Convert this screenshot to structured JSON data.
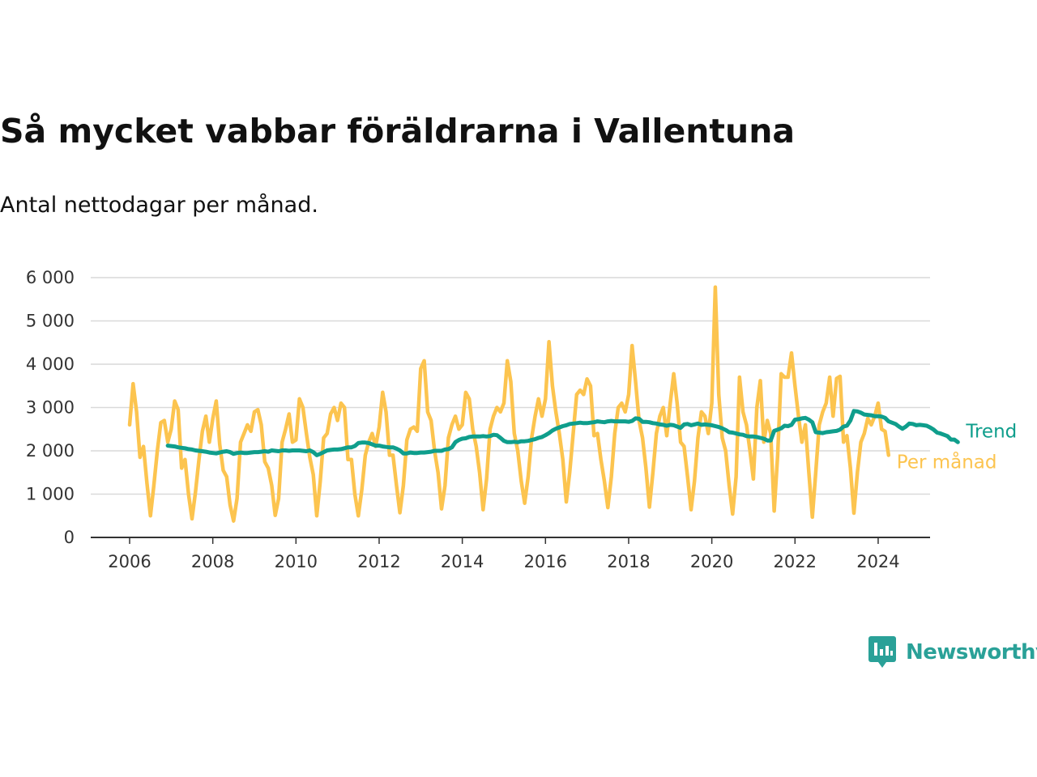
{
  "title": "Så mycket vabbar föräldrarna i Vallentuna",
  "subtitle": "Antal nettodagar per månad.",
  "brand": {
    "name": "Newsworthy",
    "icon": "chart-bubble-icon",
    "color": "#2aa198"
  },
  "chart_data": {
    "type": "line",
    "x_axis_type": "date",
    "xlim": [
      "2006-01",
      "2024-12"
    ],
    "ylim": [
      0,
      6000
    ],
    "y_ticks": [
      0,
      1000,
      2000,
      3000,
      4000,
      5000,
      6000
    ],
    "y_tick_labels": [
      "0",
      "1 000",
      "2 000",
      "3 000",
      "4 000",
      "5 000",
      "6 000"
    ],
    "x_ticks": [
      "2006",
      "2008",
      "2010",
      "2012",
      "2014",
      "2016",
      "2018",
      "2020",
      "2022",
      "2024"
    ],
    "grid": "horizontal",
    "legend": "inline-right",
    "series": [
      {
        "name": "Per månad",
        "color": "#fcc44f",
        "start": "2006-01",
        "values": [
          2600,
          3550,
          2900,
          1850,
          2100,
          1250,
          500,
          1200,
          2000,
          2650,
          2700,
          2200,
          2500,
          3150,
          2950,
          1600,
          1800,
          1000,
          430,
          1050,
          1800,
          2450,
          2800,
          2200,
          2750,
          3150,
          2150,
          1550,
          1400,
          750,
          380,
          900,
          2200,
          2400,
          2600,
          2450,
          2900,
          2950,
          2600,
          1750,
          1600,
          1200,
          510,
          900,
          2200,
          2500,
          2850,
          2200,
          2250,
          3200,
          3000,
          2400,
          1850,
          1450,
          500,
          1300,
          2300,
          2400,
          2850,
          3000,
          2700,
          3100,
          3000,
          1800,
          1800,
          1000,
          500,
          1100,
          1900,
          2200,
          2400,
          2100,
          2550,
          3350,
          2900,
          1900,
          1900,
          1200,
          570,
          1200,
          2250,
          2500,
          2550,
          2450,
          3900,
          4080,
          2900,
          2700,
          2000,
          1500,
          660,
          1200,
          2300,
          2600,
          2800,
          2500,
          2600,
          3350,
          3200,
          2500,
          2100,
          1500,
          640,
          1350,
          2500,
          2800,
          3000,
          2900,
          3100,
          4080,
          3600,
          2400,
          2000,
          1300,
          790,
          1400,
          2300,
          2800,
          3200,
          2800,
          3200,
          4520,
          3500,
          2900,
          2400,
          1800,
          820,
          1500,
          2400,
          3300,
          3400,
          3300,
          3660,
          3500,
          2350,
          2400,
          1800,
          1300,
          690,
          1400,
          2400,
          3000,
          3100,
          2900,
          3300,
          4430,
          3600,
          2700,
          2300,
          1600,
          700,
          1500,
          2400,
          2800,
          3000,
          2350,
          3100,
          3780,
          3100,
          2200,
          2100,
          1400,
          640,
          1300,
          2300,
          2900,
          2800,
          2400,
          3100,
          5780,
          3300,
          2300,
          2000,
          1200,
          540,
          1400,
          3700,
          2900,
          2600,
          2000,
          1350,
          3000,
          3620,
          2200,
          2700,
          2400,
          610,
          1900,
          3780,
          3700,
          3700,
          4260,
          3500,
          2800,
          2200,
          2600,
          1500,
          470,
          1500,
          2600,
          2900,
          3100,
          3700,
          2800,
          3670,
          3720,
          2200,
          2350,
          1600,
          560,
          1500,
          2200,
          2400,
          2750,
          2600,
          2800,
          3100,
          2500,
          2450,
          1900
        ]
      },
      {
        "name": "Trend",
        "color": "#0f9e8c",
        "start": "2006-12",
        "values": [
          2120,
          2110,
          2100,
          2080,
          2070,
          2060,
          2040,
          2030,
          2010,
          2000,
          1990,
          1980,
          1960,
          1950,
          1940,
          1960,
          1980,
          1990,
          1970,
          1930,
          1950,
          1960,
          1950,
          1950,
          1960,
          1970,
          1970,
          1980,
          1990,
          1980,
          2010,
          2000,
          1990,
          2010,
          2010,
          2000,
          2010,
          2010,
          2010,
          2000,
          1990,
          2010,
          1970,
          1900,
          1930,
          1970,
          2010,
          2020,
          2030,
          2030,
          2040,
          2060,
          2080,
          2080,
          2110,
          2180,
          2190,
          2190,
          2180,
          2150,
          2120,
          2120,
          2100,
          2090,
          2080,
          2080,
          2050,
          2010,
          1940,
          1940,
          1960,
          1950,
          1950,
          1960,
          1960,
          1970,
          1980,
          2000,
          2000,
          2000,
          2030,
          2040,
          2080,
          2200,
          2250,
          2280,
          2290,
          2320,
          2330,
          2330,
          2330,
          2340,
          2330,
          2340,
          2370,
          2360,
          2300,
          2230,
          2200,
          2200,
          2210,
          2200,
          2220,
          2220,
          2230,
          2250,
          2270,
          2300,
          2320,
          2360,
          2410,
          2470,
          2510,
          2540,
          2570,
          2590,
          2620,
          2630,
          2640,
          2650,
          2640,
          2640,
          2650,
          2660,
          2680,
          2670,
          2660,
          2680,
          2690,
          2680,
          2680,
          2680,
          2680,
          2670,
          2690,
          2750,
          2740,
          2670,
          2670,
          2660,
          2640,
          2630,
          2610,
          2600,
          2580,
          2600,
          2590,
          2560,
          2530,
          2610,
          2620,
          2590,
          2610,
          2630,
          2600,
          2610,
          2600,
          2590,
          2570,
          2550,
          2520,
          2480,
          2430,
          2420,
          2400,
          2380,
          2370,
          2340,
          2330,
          2330,
          2320,
          2300,
          2280,
          2240,
          2240,
          2460,
          2490,
          2520,
          2580,
          2570,
          2600,
          2720,
          2730,
          2750,
          2760,
          2720,
          2660,
          2430,
          2420,
          2410,
          2430,
          2440,
          2450,
          2460,
          2490,
          2560,
          2580,
          2700,
          2920,
          2910,
          2880,
          2840,
          2830,
          2820,
          2800,
          2800,
          2790,
          2760,
          2680,
          2650,
          2620,
          2560,
          2510,
          2560,
          2630,
          2620,
          2590,
          2600,
          2590,
          2580,
          2540,
          2490,
          2420,
          2400,
          2370,
          2340,
          2260,
          2260,
          2200
        ]
      }
    ]
  }
}
